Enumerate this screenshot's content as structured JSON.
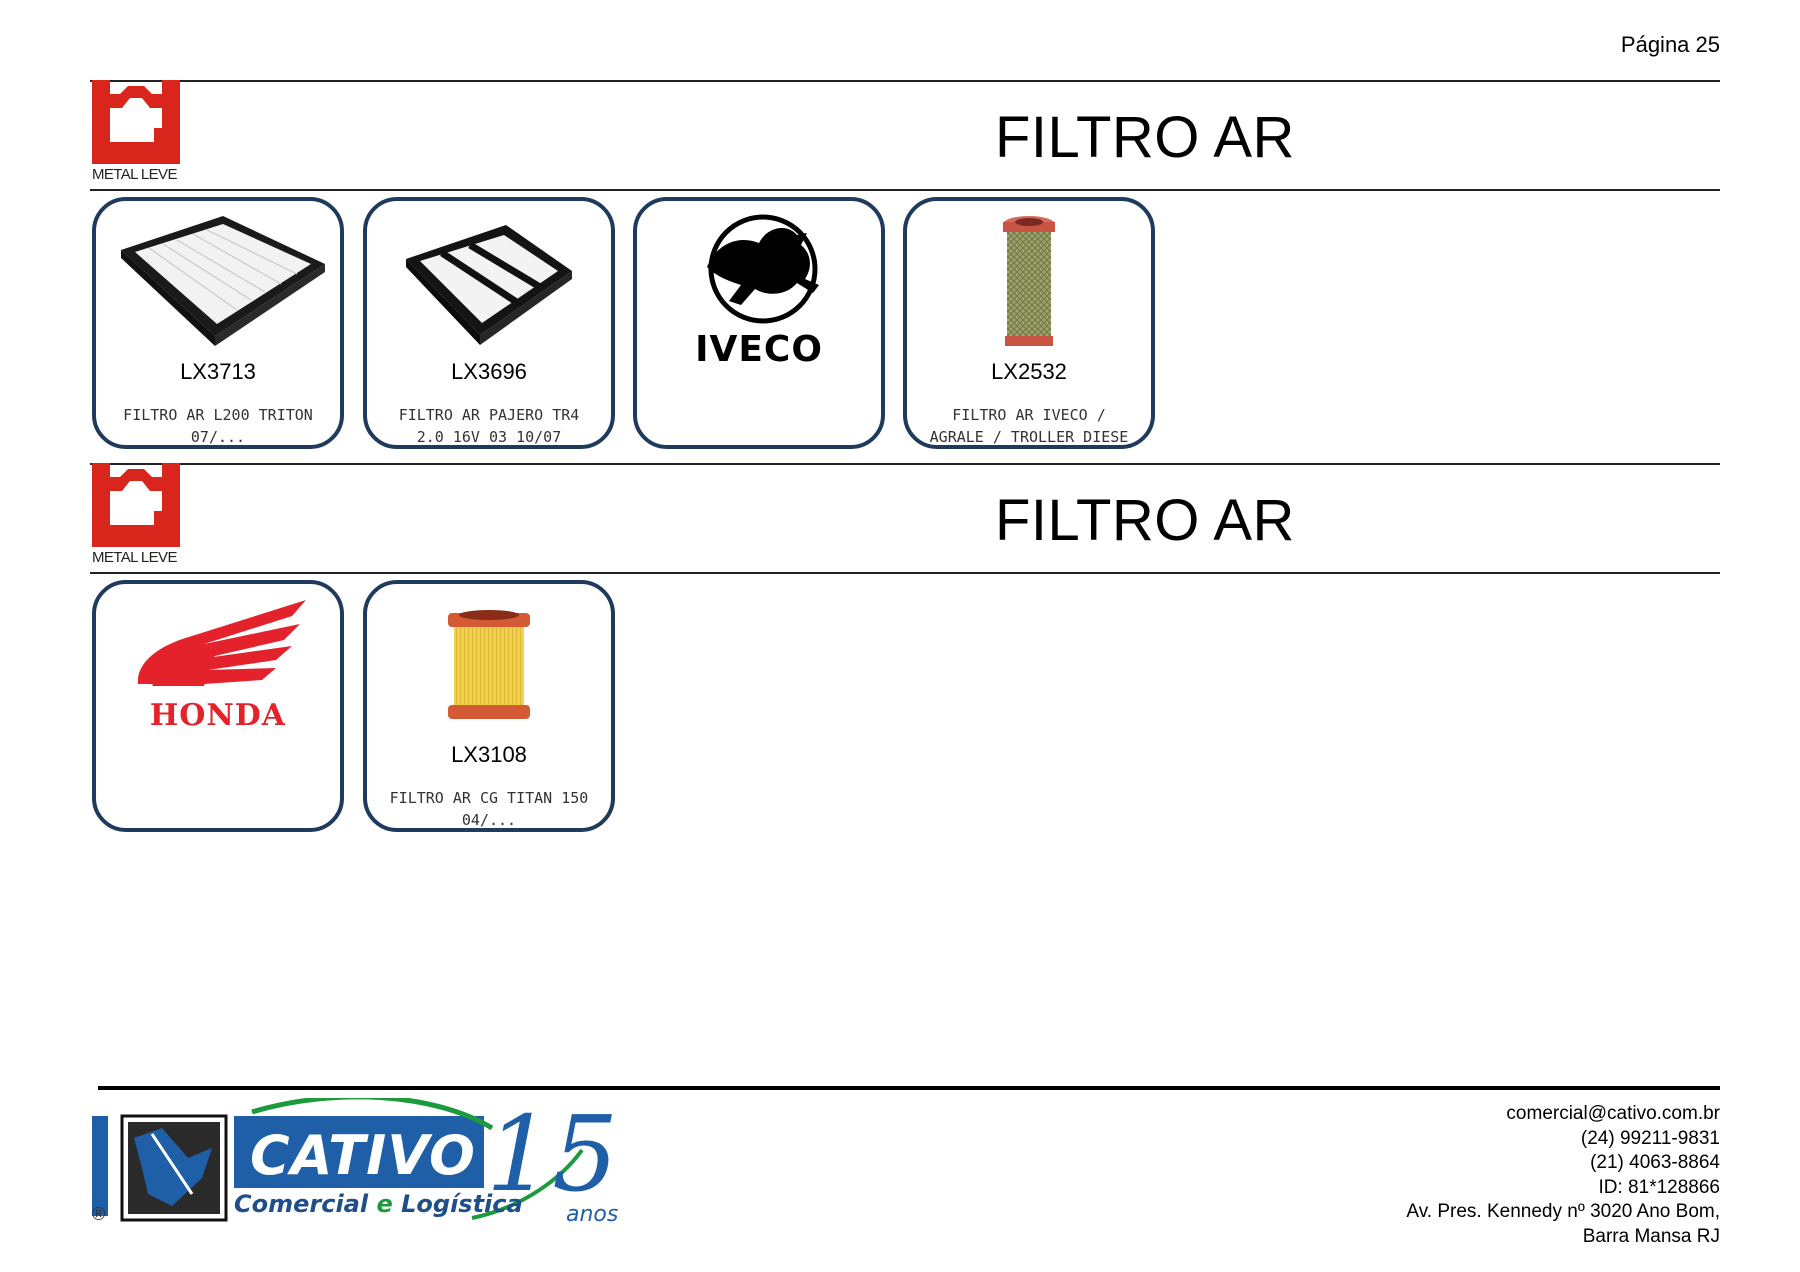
{
  "header": {
    "page_label": "Página 25"
  },
  "sections": [
    {
      "brand_label": "METAL LEVE",
      "title": "FILTRO AR",
      "cards": [
        {
          "code": "LX3713",
          "desc_lines": [
            "FILTRO AR L200 TRITON",
            "07/..."
          ],
          "image": "square-panel-filter"
        },
        {
          "code": "LX3696",
          "desc_lines": [
            "FILTRO AR PAJERO TR4",
            "2.0 16V 03 10/07"
          ],
          "image": "square-panel-filter"
        },
        {
          "code": "",
          "desc_lines": [],
          "image": "iveco-logo",
          "logo_text": "IVECO"
        },
        {
          "code": "LX2532",
          "desc_lines": [
            "FILTRO AR IVECO /",
            "AGRALE / TROLLER DIESE"
          ],
          "image": "cylinder-filter-green"
        }
      ]
    },
    {
      "brand_label": "METAL LEVE",
      "title": "FILTRO AR",
      "cards": [
        {
          "code": "",
          "desc_lines": [],
          "image": "honda-wing-logo",
          "logo_text": "HONDA"
        },
        {
          "code": "LX3108",
          "desc_lines": [
            "FILTRO AR CG TITAN 150",
            "04/..."
          ],
          "image": "cylinder-filter-yellow"
        }
      ]
    }
  ],
  "footer": {
    "logo": {
      "name": "CATIVO",
      "tagline_a": "Comercial",
      "tagline_b": "e",
      "tagline_c": "Logística",
      "years": "15",
      "years_word": "anos",
      "registered": "®"
    },
    "contact": {
      "email": "comercial@cativo.com.br",
      "phone1": "(24) 99211-9831",
      "phone2": "(21) 4063-8864",
      "id": "ID: 81*128866",
      "address1": "Av. Pres. Kennedy nº 3020  Ano Bom,",
      "address2": "Barra Mansa RJ"
    }
  },
  "colors": {
    "brand_red": "#d9261c",
    "card_border": "#1f3a5c",
    "cativo_blue": "#1f5fa8",
    "cativo_green": "#1d9a3e"
  }
}
